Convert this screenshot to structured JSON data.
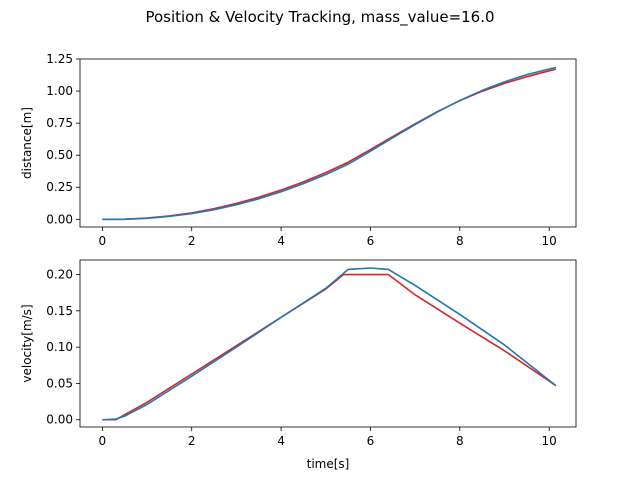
{
  "figure": {
    "title": "Position & Velocity Tracking, mass_value=16.0"
  },
  "chart_data": [
    {
      "type": "line",
      "name": "distance",
      "xlabel": "",
      "ylabel": "distance[m]",
      "xlim": [
        -0.5,
        10.6
      ],
      "ylim": [
        -0.06,
        1.25
      ],
      "xticks": [
        0,
        2,
        4,
        6,
        8,
        10
      ],
      "yticks": [
        0.0,
        0.25,
        0.5,
        0.75,
        1.0,
        1.25
      ],
      "xtick_labels": [
        "0",
        "2",
        "4",
        "6",
        "8",
        "10"
      ],
      "ytick_labels": [
        "0.00",
        "0.25",
        "0.50",
        "0.75",
        "1.00",
        "1.25"
      ],
      "grid": false,
      "series": [
        {
          "color": "#d62728",
          "x": [
            0.0,
            0.3,
            0.5,
            1.0,
            1.5,
            2.0,
            2.5,
            3.0,
            3.5,
            4.0,
            4.5,
            5.0,
            5.5,
            6.0,
            6.5,
            7.0,
            7.5,
            8.0,
            8.5,
            9.0,
            9.5,
            10.0,
            10.15
          ],
          "y": [
            0.0,
            0.0,
            0.001,
            0.01,
            0.026,
            0.05,
            0.083,
            0.124,
            0.172,
            0.228,
            0.292,
            0.364,
            0.445,
            0.544,
            0.645,
            0.745,
            0.84,
            0.925,
            0.998,
            1.06,
            1.112,
            1.158,
            1.17
          ]
        },
        {
          "color": "#1f77b4",
          "x": [
            0.0,
            0.3,
            0.5,
            1.0,
            1.5,
            2.0,
            2.5,
            3.0,
            3.5,
            4.0,
            4.5,
            5.0,
            5.5,
            6.0,
            6.5,
            7.0,
            7.5,
            8.0,
            8.5,
            9.0,
            9.5,
            10.0,
            10.15
          ],
          "y": [
            0.0,
            0.0,
            0.0,
            0.008,
            0.023,
            0.045,
            0.075,
            0.114,
            0.16,
            0.215,
            0.278,
            0.349,
            0.43,
            0.531,
            0.636,
            0.739,
            0.837,
            0.927,
            1.005,
            1.072,
            1.128,
            1.172,
            1.183
          ]
        }
      ]
    },
    {
      "type": "line",
      "name": "velocity",
      "xlabel": "time[s]",
      "ylabel": "velocity[m/s]",
      "xlim": [
        -0.5,
        10.6
      ],
      "ylim": [
        -0.01,
        0.22
      ],
      "xticks": [
        0,
        2,
        4,
        6,
        8,
        10
      ],
      "yticks": [
        0.0,
        0.05,
        0.1,
        0.15,
        0.2
      ],
      "xtick_labels": [
        "0",
        "2",
        "4",
        "6",
        "8",
        "10"
      ],
      "ytick_labels": [
        "0.00",
        "0.05",
        "0.10",
        "0.15",
        "0.20"
      ],
      "grid": false,
      "series": [
        {
          "color": "#d62728",
          "x": [
            0.0,
            0.3,
            0.5,
            1.0,
            2.0,
            3.0,
            4.0,
            5.0,
            5.4,
            6.0,
            6.4,
            7.0,
            8.0,
            9.0,
            10.15
          ],
          "y": [
            0.0,
            0.0,
            0.007,
            0.024,
            0.063,
            0.102,
            0.141,
            0.18,
            0.2,
            0.2,
            0.2,
            0.172,
            0.133,
            0.095,
            0.047
          ]
        },
        {
          "color": "#1f77b4",
          "x": [
            0.0,
            0.3,
            0.5,
            1.0,
            2.0,
            3.0,
            4.0,
            5.0,
            5.5,
            6.0,
            6.4,
            7.0,
            8.0,
            9.0,
            10.15
          ],
          "y": [
            0.0,
            0.001,
            0.005,
            0.021,
            0.06,
            0.1,
            0.141,
            0.181,
            0.207,
            0.209,
            0.207,
            0.185,
            0.145,
            0.103,
            0.047
          ]
        }
      ]
    }
  ]
}
